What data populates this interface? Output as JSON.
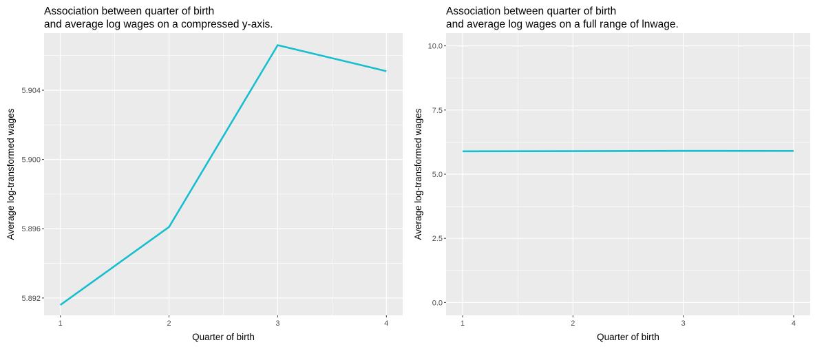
{
  "chart_data": [
    {
      "type": "line",
      "title_line1": "Association between quarter of birth",
      "title_line2": "and average log wages on a compressed y-axis.",
      "xlabel": "Quarter of birth",
      "ylabel": "Average log-transformed wages",
      "x": [
        1,
        2,
        3,
        4
      ],
      "y": [
        5.8916,
        5.8961,
        5.9066,
        5.9051
      ],
      "xlim": [
        0.85,
        4.15
      ],
      "ylim": [
        5.891,
        5.9073
      ],
      "x_ticks": [
        1,
        2,
        3,
        4
      ],
      "x_tick_labels": [
        "1",
        "2",
        "3",
        "4"
      ],
      "y_ticks": [
        5.892,
        5.896,
        5.9,
        5.904
      ],
      "y_tick_labels": [
        "5.892",
        "5.896",
        "5.900",
        "5.904"
      ],
      "line_color": "#17becf",
      "panel_background": "#ebebeb",
      "grid": true
    },
    {
      "type": "line",
      "title_line1": "Association between quarter of birth",
      "title_line2": "and average log wages on a full range of lnwage.",
      "xlabel": "Quarter of birth",
      "ylabel": "Average log-transformed wages",
      "x": [
        1,
        2,
        3,
        4
      ],
      "y": [
        5.8916,
        5.8961,
        5.9066,
        5.9051
      ],
      "xlim": [
        0.85,
        4.15
      ],
      "ylim": [
        -0.5,
        10.5
      ],
      "x_ticks": [
        1,
        2,
        3,
        4
      ],
      "x_tick_labels": [
        "1",
        "2",
        "3",
        "4"
      ],
      "y_ticks": [
        0,
        2.5,
        5,
        7.5,
        10
      ],
      "y_tick_labels": [
        "0.0",
        "2.5",
        "5.0",
        "7.5",
        "10.0"
      ],
      "line_color": "#17becf",
      "panel_background": "#ebebeb",
      "grid": true
    }
  ]
}
